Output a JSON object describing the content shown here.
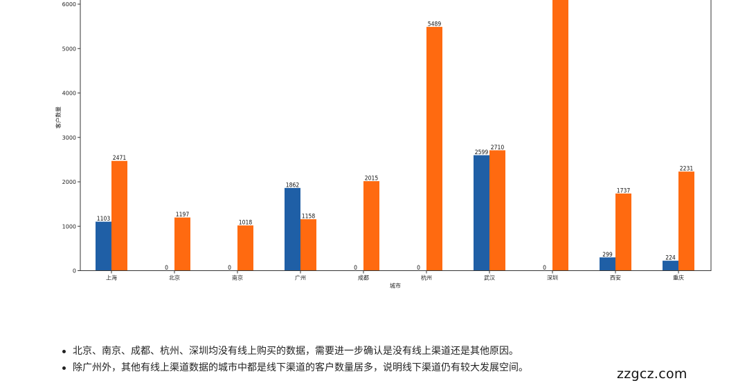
{
  "chart_data": {
    "type": "bar",
    "xlabel": "城市",
    "ylabel": "客户数量",
    "ylim": [
      0,
      6100
    ],
    "yticks": [
      0,
      1000,
      2000,
      3000,
      4000,
      5000,
      6000
    ],
    "categories": [
      "上海",
      "北京",
      "南京",
      "广州",
      "成都",
      "杭州",
      "武汉",
      "深圳",
      "西安",
      "重庆"
    ],
    "series": [
      {
        "color": "#1f5fa6",
        "values": [
          1103,
          0,
          0,
          1862,
          0,
          0,
          2599,
          0,
          299,
          224
        ],
        "labels": [
          "1103",
          "0",
          "0",
          "1862",
          "0",
          "0",
          "2599",
          "0",
          "299",
          "224"
        ]
      },
      {
        "color": "#ff6a10",
        "values": [
          2471,
          1197,
          1018,
          1158,
          2015,
          5489,
          2710,
          6100,
          1737,
          2231
        ],
        "labels": [
          "2471",
          "1197",
          "1018",
          "1158",
          "2015",
          "5489",
          "2710",
          "",
          "1737",
          "2231"
        ]
      }
    ],
    "grid": false,
    "legend": "none"
  },
  "notes": [
    "北京、南京、成都、杭州、深圳均没有线上购买的数据，需要进一步确认是没有线上渠道还是其他原因。",
    "除广州外，其他有线上渠道数据的城市中都是线下渠道的客户数量居多，说明线下渠道仍有较大发展空间。"
  ],
  "watermark": "zzgcz.com"
}
